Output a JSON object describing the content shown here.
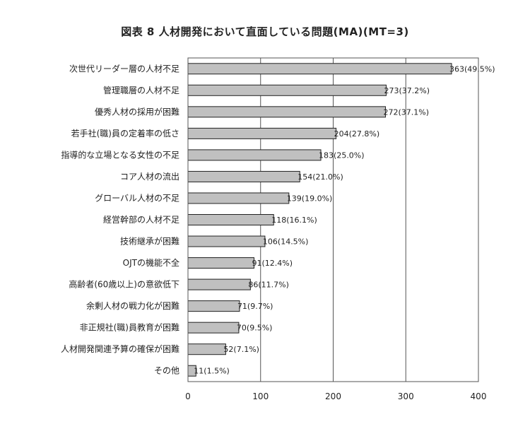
{
  "chart_data": {
    "type": "bar",
    "orientation": "horizontal",
    "title": "図表 8 人材開発において直面している問題(MA)(MT=3)",
    "xlabel": "",
    "ylabel": "",
    "xlim": [
      0,
      400
    ],
    "ticks": [
      0,
      100,
      200,
      300,
      400
    ],
    "grid": true,
    "legend": "none",
    "bar_color": "#c0c0c0",
    "categories": [
      "次世代リーダー層の人材不足",
      "管理職層の人材不足",
      "優秀人材の採用が困難",
      "若手社(職)員の定着率の低さ",
      "指導的な立場となる女性の不足",
      "コア人材の流出",
      "グローバル人材の不足",
      "経営幹部の人材不足",
      "技術継承が困難",
      "OJTの機能不全",
      "高齢者(60歳以上)の意欲低下",
      "余剰人材の戦力化が困難",
      "非正規社(職)員教育が困難",
      "人材開発関連予算の確保が困難",
      "その他"
    ],
    "values": [
      363,
      273,
      272,
      204,
      183,
      154,
      139,
      118,
      106,
      91,
      86,
      71,
      70,
      52,
      11
    ],
    "value_labels": [
      "363(49.5%)",
      "273(37.2%)",
      "272(37.1%)",
      "204(27.8%)",
      "183(25.0%)",
      "154(21.0%)",
      "139(19.0%)",
      "118(16.1%)",
      "106(14.5%)",
      "91(12.4%)",
      "86(11.7%)",
      "71(9.7%)",
      "70(9.5%)",
      "52(7.1%)",
      "11(1.5%)"
    ]
  }
}
